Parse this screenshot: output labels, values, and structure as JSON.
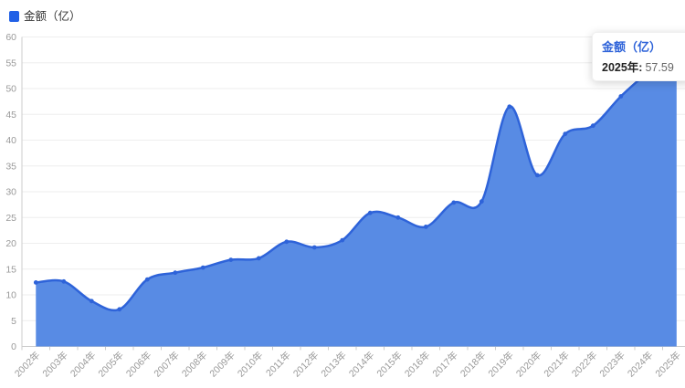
{
  "legend": {
    "label": "金额（亿）"
  },
  "tooltip": {
    "title": "金额（亿）",
    "label": "2025年:",
    "value": "57.59"
  },
  "colors": {
    "line": "#2e63d9",
    "area": "#588be4",
    "legend_swatch": "#2160e6",
    "axis_line": "#cccccc",
    "grid_line": "#eeeeee",
    "axis_label": "#999999",
    "tooltip_title": "#2e63d9"
  },
  "chart_data": {
    "type": "area",
    "title": "",
    "xlabel": "",
    "ylabel": "",
    "categories": [
      "2002年",
      "2003年",
      "2004年",
      "2005年",
      "2006年",
      "2007年",
      "2008年",
      "2009年",
      "2010年",
      "2011年",
      "2012年",
      "2013年",
      "2014年",
      "2015年",
      "2016年",
      "2017年",
      "2018年",
      "2019年",
      "2020年",
      "2021年",
      "2022年",
      "2023年",
      "2024年",
      "2025年"
    ],
    "series": [
      {
        "name": "金额（亿）",
        "values": [
          12.4,
          12.6,
          8.8,
          7.2,
          13.0,
          14.3,
          15.3,
          16.8,
          17.1,
          20.3,
          19.2,
          20.6,
          25.9,
          25.0,
          23.2,
          27.9,
          28.1,
          46.5,
          33.2,
          41.2,
          42.8,
          48.5,
          53.3,
          57.59
        ]
      }
    ],
    "ylim": [
      0,
      60
    ],
    "ytick_step": 5,
    "grid": true,
    "legend_position": "top-left",
    "highlighted_point": {
      "category": "2025年",
      "value": 57.59
    }
  }
}
